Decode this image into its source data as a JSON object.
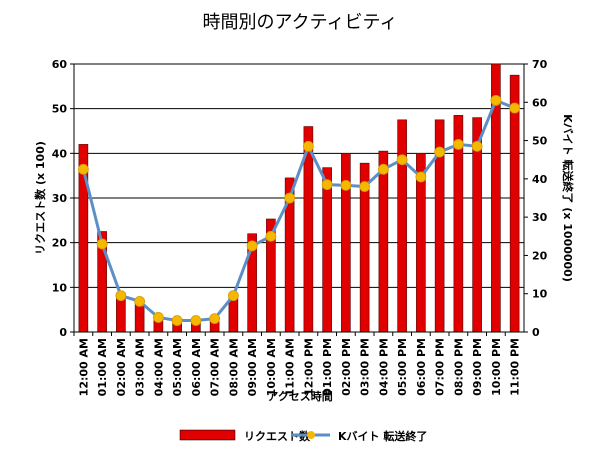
{
  "chart_data": {
    "type": "bar",
    "title": "時間別のアクティビティ",
    "xlabel": "アクセス時間",
    "ylabel": "リクエスト数 (x 100)",
    "y2label": "Kバイト 転送終了 (x 1000000)",
    "ylim": [
      0,
      60
    ],
    "y2lim": [
      0,
      70
    ],
    "yticks": [
      "0",
      "10",
      "20",
      "30",
      "40",
      "50",
      "60"
    ],
    "y2ticks": [
      "0",
      "10",
      "20",
      "30",
      "40",
      "50",
      "60",
      "70"
    ],
    "grid": true,
    "legend_position": "bottom",
    "categories": [
      "12:00 AM",
      "01:00 AM",
      "02:00 AM",
      "03:00 AM",
      "04:00 AM",
      "05:00 AM",
      "06:00 AM",
      "07:00 AM",
      "08:00 AM",
      "09:00 AM",
      "10:00 AM",
      "11:00 AM",
      "12:00 PM",
      "01:00 PM",
      "02:00 PM",
      "03:00 PM",
      "04:00 PM",
      "05:00 PM",
      "06:00 PM",
      "07:00 PM",
      "08:00 PM",
      "09:00 PM",
      "10:00 PM",
      "11:00 PM"
    ],
    "series": [
      {
        "name": "リクエスト数",
        "type": "bar",
        "axis": "left",
        "color": "#e00000",
        "values": [
          42,
          22.5,
          8.7,
          6.8,
          3.3,
          2.5,
          2.5,
          3.2,
          8,
          22,
          25.3,
          34.5,
          46,
          36.8,
          40,
          37.8,
          40.5,
          47.5,
          40,
          47.5,
          48.5,
          48,
          60,
          57.5
        ]
      },
      {
        "name": "Kバイト 転送終了",
        "type": "line",
        "axis": "right",
        "color": "#5b8fc7",
        "marker_color": "#f5b800",
        "values": [
          42.5,
          23,
          9.5,
          8,
          3.8,
          3,
          3,
          3.5,
          9.5,
          22.5,
          25,
          35,
          48.5,
          38.5,
          38.3,
          38,
          42.5,
          45,
          40.5,
          47,
          49,
          48.5,
          60.5,
          58.5
        ]
      }
    ]
  }
}
